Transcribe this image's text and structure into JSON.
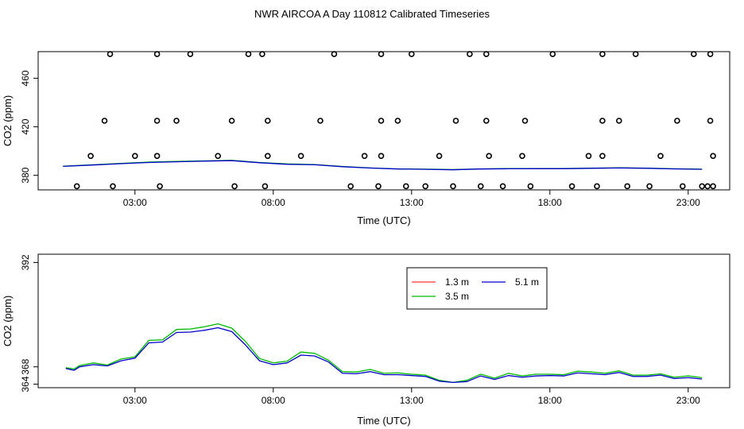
{
  "title": "NWR AIRCOA A  Day 110812  Calibrated Timeseries",
  "colors": {
    "red": "#ff0000",
    "green": "#00bb00",
    "blue": "#0000cc",
    "axis": "#000000"
  },
  "chart_data": [
    {
      "type": "line",
      "id": "top",
      "xlabel": "Time (UTC)",
      "ylabel": "CO2 (ppm)",
      "xlim": [
        -0.5,
        24.5
      ],
      "ylim": [
        368,
        482
      ],
      "xticks": [
        3,
        8,
        13,
        18,
        23
      ],
      "xtick_labels": [
        "03:00",
        "08:00",
        "13:00",
        "18:00",
        "23:00"
      ],
      "yticks": [
        380,
        420,
        460
      ],
      "ytick_labels": [
        "380",
        "420",
        "460"
      ],
      "series": [
        {
          "name": "5.1 m",
          "color": "blue",
          "x": [
            0.4,
            1.5,
            2.5,
            3.5,
            4.5,
            5.5,
            6.5,
            7.5,
            8.5,
            9.5,
            10.5,
            11.5,
            12.5,
            13.5,
            14.5,
            15.5,
            16.5,
            17.5,
            18.5,
            19.5,
            20.5,
            21.5,
            22.5,
            23.5
          ],
          "y": [
            387.4,
            388.5,
            389.6,
            390.6,
            391.2,
            391.7,
            392.1,
            390.4,
            389.1,
            388.7,
            387.1,
            386.0,
            385.2,
            385.0,
            384.6,
            385.2,
            385.4,
            385.5,
            385.5,
            385.8,
            386.1,
            385.8,
            385.3,
            385.0
          ]
        },
        {
          "name": "3.5 m",
          "color": "green",
          "x": [
            0.4,
            1.5,
            2.5,
            3.5,
            4.5,
            5.5,
            6.5,
            7.5,
            8.5,
            9.5,
            10.5,
            11.5,
            12.5,
            13.5,
            14.5,
            15.5,
            16.5,
            17.5,
            18.5,
            19.5,
            20.5,
            21.5,
            22.5,
            23.5
          ],
          "y": [
            387.6,
            388.7,
            389.9,
            390.9,
            391.5,
            391.9,
            392.4,
            390.6,
            389.4,
            388.9,
            387.3,
            386.1,
            385.3,
            385.1,
            384.8,
            385.3,
            385.6,
            385.6,
            385.6,
            385.9,
            386.2,
            385.9,
            385.4,
            385.1
          ]
        }
      ],
      "flags": {
        "x": [
          0.9,
          2.2,
          3.9,
          6.6,
          7.7,
          10.8,
          11.8,
          12.8,
          13.5,
          14.5,
          15.5,
          16.3,
          17.3,
          18.8,
          19.7,
          20.8,
          21.6,
          22.8,
          23.5,
          23.7,
          23.8,
          23.8,
          23.9,
          23.9,
          1.4,
          3.0,
          3.8,
          6.0,
          7.8,
          9.0,
          11.3,
          11.9,
          14.0,
          15.8,
          17.0,
          19.4,
          19.9,
          22.0,
          1.9,
          3.8,
          4.5,
          6.5,
          7.8,
          9.7,
          11.9,
          12.5,
          14.6,
          15.7,
          17.1,
          19.9,
          20.5,
          22.6,
          2.1,
          3.8,
          5.0,
          7.1,
          7.6,
          10.2,
          11.9,
          13.0,
          15.1,
          15.7,
          18.1,
          19.9,
          21.1,
          23.2
        ],
        "y": [
          371,
          371,
          371,
          371,
          371,
          371,
          371,
          371,
          371,
          371,
          371,
          371,
          371,
          371,
          371,
          371,
          371,
          371,
          371,
          371,
          480,
          425,
          396,
          371,
          396,
          396,
          396,
          396,
          396,
          396,
          396,
          396,
          396,
          396,
          396,
          396,
          396,
          396,
          425,
          425,
          425,
          425,
          425,
          425,
          425,
          425,
          425,
          425,
          425,
          425,
          425,
          425,
          480,
          480,
          480,
          480,
          480,
          480,
          480,
          480,
          480,
          480,
          480,
          480,
          480,
          480
        ]
      }
    },
    {
      "type": "line",
      "id": "bottom",
      "xlabel": "Time (UTC)",
      "ylabel": "CO2 (ppm)",
      "xlim": [
        -0.5,
        24.5
      ],
      "ylim": [
        363.2,
        393.9
      ],
      "xticks": [
        3,
        8,
        13,
        18,
        23
      ],
      "xtick_labels": [
        "03:00",
        "08:00",
        "13:00",
        "18:00",
        "23:00"
      ],
      "yticks": [
        364,
        368,
        392
      ],
      "ytick_labels": [
        "364",
        "368",
        "392"
      ],
      "legend": {
        "position": "top-center",
        "entries": [
          {
            "label": "1.3 m",
            "color": "red"
          },
          {
            "label": "3.5 m",
            "color": "green"
          },
          {
            "label": "5.1 m",
            "color": "blue"
          }
        ]
      },
      "series": [
        {
          "name": "5.1 m",
          "color": "blue",
          "x": [
            0.5,
            0.8,
            1.0,
            1.5,
            2.0,
            2.5,
            3.0,
            3.5,
            4.0,
            4.5,
            5.0,
            5.5,
            6.0,
            6.5,
            7.0,
            7.5,
            8.0,
            8.5,
            9.0,
            9.5,
            10.0,
            10.5,
            11.0,
            11.5,
            12.0,
            12.5,
            13.0,
            13.5,
            14.0,
            14.5,
            15.0,
            15.5,
            16.0,
            16.5,
            17.0,
            17.5,
            18.0,
            18.5,
            19.0,
            19.5,
            20.0,
            20.5,
            21.0,
            21.5,
            22.0,
            22.5,
            23.0,
            23.5
          ],
          "y": [
            367.6,
            367.2,
            368.0,
            368.5,
            368.2,
            369.4,
            370.0,
            373.5,
            373.7,
            375.9,
            376.0,
            376.4,
            377.0,
            376.1,
            373.0,
            369.4,
            368.5,
            368.9,
            370.7,
            370.5,
            369.1,
            366.5,
            366.4,
            366.9,
            366.2,
            366.2,
            366.0,
            365.8,
            364.7,
            364.4,
            364.6,
            365.9,
            365.1,
            366.0,
            365.6,
            365.9,
            366.0,
            365.9,
            366.6,
            366.4,
            366.2,
            366.7,
            365.8,
            365.8,
            366.1,
            365.3,
            365.5,
            365.2
          ]
        },
        {
          "name": "3.5 m",
          "color": "green",
          "x": [
            0.5,
            0.8,
            1.0,
            1.5,
            2.0,
            2.5,
            3.0,
            3.5,
            4.0,
            4.5,
            5.0,
            5.5,
            6.0,
            6.5,
            7.0,
            7.5,
            8.0,
            8.5,
            9.0,
            9.5,
            10.0,
            10.5,
            11.0,
            11.5,
            12.0,
            12.5,
            13.0,
            13.5,
            14.0,
            14.5,
            15.0,
            15.5,
            16.0,
            16.5,
            17.0,
            17.5,
            18.0,
            18.5,
            19.0,
            19.5,
            20.0,
            20.5,
            21.0,
            21.5,
            22.0,
            22.5,
            23.0,
            23.5
          ],
          "y": [
            367.8,
            367.5,
            368.3,
            368.9,
            368.4,
            369.8,
            370.3,
            374.1,
            374.2,
            376.6,
            376.7,
            377.2,
            377.9,
            376.9,
            373.8,
            369.9,
            368.9,
            369.3,
            371.4,
            371.1,
            369.5,
            366.9,
            366.8,
            367.4,
            366.5,
            366.6,
            366.3,
            366.1,
            364.9,
            364.4,
            364.9,
            366.3,
            365.4,
            366.5,
            365.9,
            366.3,
            366.3,
            366.2,
            367.0,
            366.8,
            366.5,
            367.1,
            366.1,
            366.1,
            366.4,
            365.6,
            365.9,
            365.5
          ]
        }
      ]
    }
  ]
}
